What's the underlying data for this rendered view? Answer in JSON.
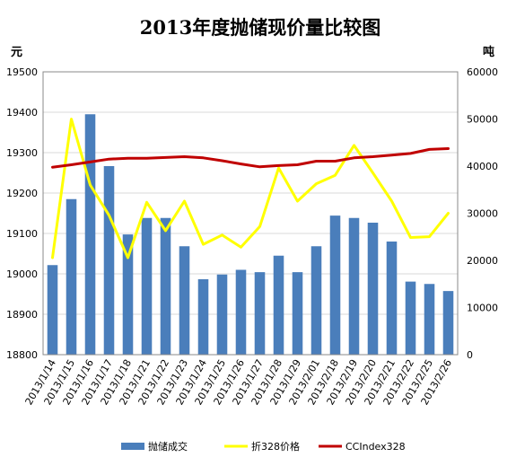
{
  "chart_data": {
    "type": "bar",
    "title": "2013年度抛储现价量比较图",
    "y_left_unit": "元",
    "y_right_unit": "吨",
    "y_left_lim": [
      18800,
      19500
    ],
    "y_left_ticks": [
      "18800",
      "18900",
      "19000",
      "19100",
      "19200",
      "19300",
      "19400",
      "19500"
    ],
    "y_right_lim": [
      0,
      60000
    ],
    "y_right_ticks": [
      "0",
      "10000",
      "20000",
      "30000",
      "40000",
      "50000",
      "60000"
    ],
    "categories": [
      "2013/1/14",
      "2013/1/15",
      "2013/1/16",
      "2013/1/17",
      "2013/1/18",
      "2013/1/21",
      "2013/1/22",
      "2013/1/23",
      "2013/1/24",
      "2013/1/25",
      "2013/1/26",
      "2013/1/27",
      "2013/1/28",
      "2013/1/29",
      "2013/2/01",
      "2013/2/18",
      "2013/2/19",
      "2013/2/20",
      "2013/2/21",
      "2013/2/22",
      "2013/2/25",
      "2013/2/26"
    ],
    "series": [
      {
        "name": "抛储成交",
        "type": "bar",
        "axis": "right",
        "color": "#4a7ebb",
        "values": [
          19000,
          33000,
          51000,
          40000,
          25500,
          29000,
          29000,
          23000,
          16000,
          17000,
          18000,
          17500,
          21000,
          17500,
          23000,
          29500,
          29000,
          28000,
          24000,
          15500,
          15000,
          13500
        ]
      },
      {
        "name": "折328价格",
        "type": "line",
        "axis": "left",
        "color": "#ffff00",
        "values": [
          19040,
          19383,
          19220,
          19145,
          19040,
          19177,
          19107,
          19180,
          19073,
          19096,
          19066,
          19117,
          19262,
          19180,
          19223,
          19244,
          19318,
          19250,
          19180,
          19090,
          19092,
          19150
        ]
      },
      {
        "name": "CCIndex328",
        "type": "line",
        "axis": "left",
        "color": "#c00000",
        "values": [
          19264,
          19270,
          19277,
          19284,
          19286,
          19286,
          19288,
          19290,
          19287,
          19280,
          19272,
          19265,
          19268,
          19270,
          19279,
          19279,
          19287,
          19290,
          19294,
          19298,
          19308,
          19310
        ]
      }
    ],
    "legend_position": "bottom",
    "grid": true
  }
}
